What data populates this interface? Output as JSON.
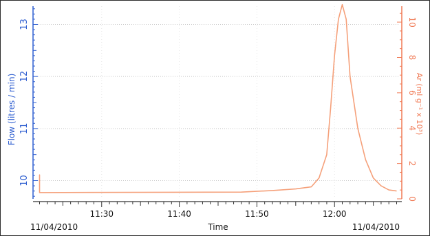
{
  "chart_data": {
    "type": "line",
    "title": "",
    "xlabel": "Time",
    "date_left": "11/04/2010",
    "date_right": "11/04/2010",
    "x_ticks": [
      "11:30",
      "11:40",
      "11:50",
      "12:00"
    ],
    "xlim_minutes": [
      11.2,
      12.075
    ],
    "ylabel_left": "Flow (litres / min)",
    "yticks_left": [
      "10",
      "11",
      "12",
      "13"
    ],
    "ylim_left": [
      9.65,
      13.35
    ],
    "ylabel_right": "Ar (ml g⁻¹ x 10³)",
    "yticks_right": [
      "0",
      "2",
      "4",
      "6",
      "8",
      "10"
    ],
    "ylim_right": [
      0,
      10.9
    ],
    "grid": true,
    "colors": {
      "left_axis": "#2f5fd0",
      "right_axis": "#f07a55",
      "series": "#f5a07a",
      "grid": "#c8c8c8"
    },
    "series": [
      {
        "axis": "left",
        "x": [
          "11:22",
          "11:22",
          "11:22",
          "11:22",
          "11:48",
          "11:52",
          "11:55",
          "11:57",
          "11:58",
          "11:59",
          "11:59.5",
          "12:00",
          "12:00.5",
          "12:01",
          "12:01.5",
          "12:02",
          "12:03",
          "12:04",
          "12:05",
          "12:06",
          "12:07",
          "12:08"
        ],
        "y": [
          9.77,
          9.81,
          10.11,
          9.77,
          9.78,
          9.81,
          9.84,
          9.88,
          10.05,
          10.5,
          11.4,
          12.4,
          13.1,
          13.38,
          13.1,
          12.0,
          11.0,
          10.4,
          10.05,
          9.9,
          9.82,
          9.8
        ]
      }
    ]
  }
}
